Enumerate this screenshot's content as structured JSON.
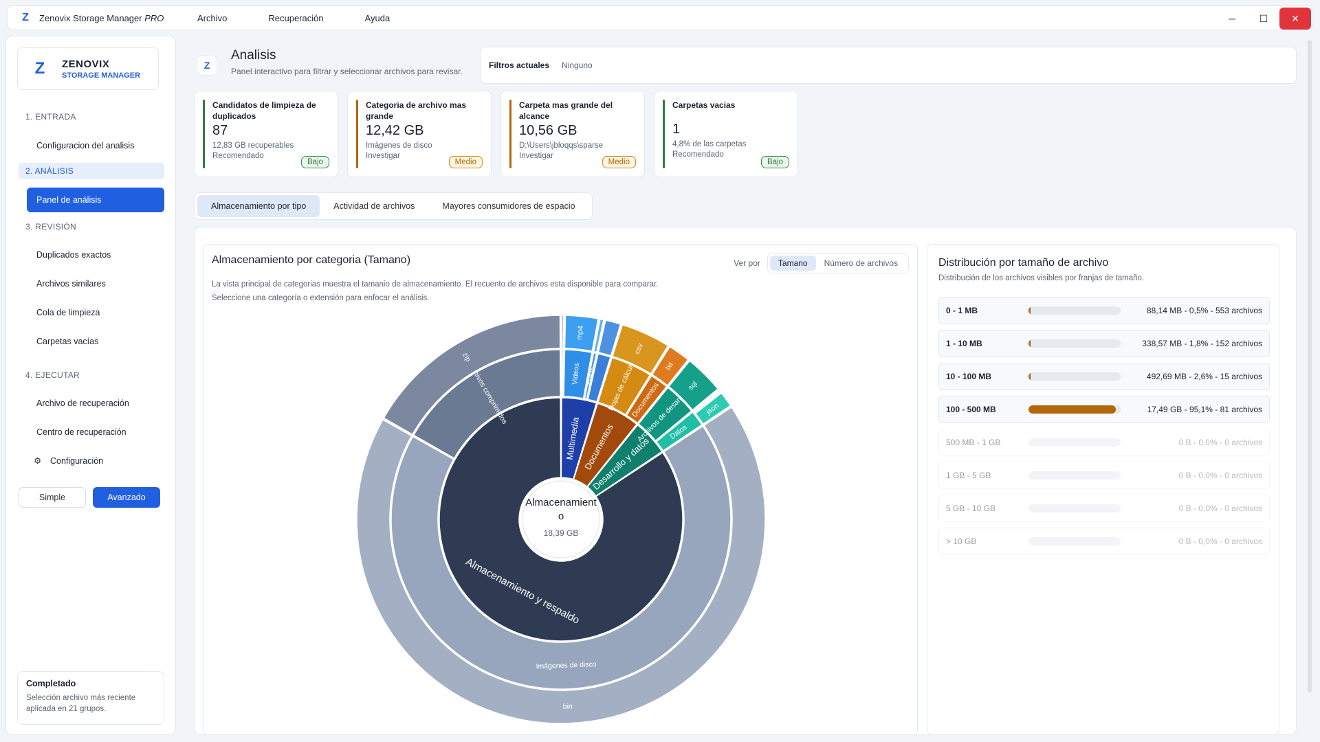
{
  "titlebar": {
    "app_name": "Zenovix Storage Manager",
    "edition": "PRO",
    "menus": [
      "Archivo",
      "Recuperación",
      "Ayuda"
    ],
    "minimize": "─",
    "maximize": "☐",
    "close": "✕"
  },
  "brand": {
    "line1": "ZENOVIX",
    "line2": "STORAGE MANAGER",
    "logo": "Z"
  },
  "sidebar": {
    "sections": [
      "1. ENTRADA",
      "2. ANÁLISIS",
      "3. REVISIÓN",
      "4. EJECUTAR"
    ],
    "items": {
      "config": "Configuracion del analisis",
      "panel": "Panel de análisis",
      "dup": "Duplicados exactos",
      "similar": "Archivos similares",
      "queue": "Cola de limpieza",
      "empty": "Carpetas vacías",
      "recovery_file": "Archivo de recuperación",
      "recovery_center": "Centro de recuperación",
      "settings": "Configuración"
    },
    "modes": [
      "Simple",
      "Avanzado"
    ],
    "status": {
      "title": "Completado",
      "desc": "Selección archivo más reciente aplicada en 21 grupos."
    }
  },
  "header": {
    "title": "Analisis",
    "subtitle": "Panel interactivo para filtrar y seleccionar archivos para revisar.",
    "filters_label": "Filtros actuales",
    "filters_value": "Ninguno"
  },
  "kpis": [
    {
      "title": "Candidatos de limpieza de duplicados",
      "value": "87",
      "detail": "12,83 GB recuperables",
      "rec": "Recomendado",
      "badge": "Bajo",
      "color": "#2e7b3e"
    },
    {
      "title": "Categoria de archivo mas grande",
      "value": "12,42 GB",
      "detail": "Imágenes de disco",
      "rec": "Investigar",
      "badge": "Medio",
      "color": "#b2670a"
    },
    {
      "title": "Carpeta mas grande del alcance",
      "value": "10,56 GB",
      "detail": "D:\\Users\\jbloqqs\\sparse",
      "rec": "Investigar",
      "badge": "Medio",
      "color": "#b2670a"
    },
    {
      "title": "Carpetas vacias",
      "value": "1",
      "detail": "4,8% de las carpetas",
      "rec": "Recomendado",
      "badge": "Bajo",
      "color": "#2e7b3e"
    }
  ],
  "tabs": [
    "Almacenamiento por tipo",
    "Actividad de archivos",
    "Mayores consumidores de espacio"
  ],
  "chart_panel": {
    "title": "Almacenamiento por categoria (Tamano)",
    "desc1": "La vista principal de categorias muestra el tamanio de almacenamiento. El recuento de archivos esta disponible para comparar.",
    "desc2": "Seleccione una categoría o extensión para enfocar el análisis.",
    "view_by": "Ver por",
    "view_options": [
      "Tamano",
      "Número de archivos"
    ]
  },
  "chart_data": {
    "type": "sunburst",
    "center_label": "Almacenamiento",
    "center_value": "18,39 GB",
    "rings": [
      {
        "level": 1,
        "segments": [
          {
            "label": "Multimedia",
            "value": 0.88,
            "color": "#1e3fa8"
          },
          {
            "label": "Documentos",
            "value": 1.1,
            "color": "#a24a0c"
          },
          {
            "label": "Desarrollo y datos",
            "value": 0.9,
            "color": "#0f7f6e"
          },
          {
            "label": "Almacenamiento y respaldo",
            "value": 15.51,
            "color": "#2e3b52"
          }
        ]
      },
      {
        "level": 2,
        "segments": [
          {
            "label": "",
            "value": 0.05,
            "color": "#7a2fd0"
          },
          {
            "label": "Videos",
            "value": 0.5,
            "color": "#2f8fe8"
          },
          {
            "label": "Fotos",
            "value": 0.08,
            "color": "#4a9ee8"
          },
          {
            "label": "",
            "value": 0.25,
            "color": "#3a7fd8"
          },
          {
            "label": "Hojas de cálculo",
            "value": 0.75,
            "color": "#d58a12"
          },
          {
            "label": "Documentos",
            "value": 0.35,
            "color": "#d06a12"
          },
          {
            "label": "Archivos de desarrollo",
            "value": 0.6,
            "color": "#129580"
          },
          {
            "label": "Datos",
            "value": 0.3,
            "color": "#1fbfa6"
          },
          {
            "label": "Imágenes de disco",
            "value": 12.42,
            "color": "#97a6bd"
          },
          {
            "label": "Archivos comprimidos",
            "value": 3.09,
            "color": "#6b7a93"
          }
        ]
      },
      {
        "level": 3,
        "segments": [
          {
            "label": "",
            "value": 0.05,
            "color": "#8a3fe0"
          },
          {
            "label": "mp4",
            "value": 0.5,
            "color": "#3d9ff0"
          },
          {
            "label": "",
            "value": 0.08,
            "color": "#5fb0f0"
          },
          {
            "label": "",
            "value": 0.25,
            "color": "#4d92e0"
          },
          {
            "label": "csv",
            "value": 0.75,
            "color": "#d8961e"
          },
          {
            "label": "txt",
            "value": 0.35,
            "color": "#e07a1e"
          },
          {
            "label": "sql",
            "value": 0.6,
            "color": "#15a08a"
          },
          {
            "label": "",
            "value": 0.05,
            "color": "#dfe3ea"
          },
          {
            "label": "json",
            "value": 0.25,
            "color": "#2ccbb2"
          },
          {
            "label": "bin",
            "value": 12.42,
            "color": "#a3b0c4"
          },
          {
            "label": "zip",
            "value": 3.09,
            "color": "#7b889f"
          }
        ]
      }
    ]
  },
  "distribution": {
    "title": "Distribución por tamaño de archivo",
    "subtitle": "Distribución de los archivos visibles por franjas de tamaño.",
    "rows": [
      {
        "label": "0 - 1 MB",
        "value": "88,14 MB - 0,5% - 553 archivos",
        "pct": 0.5
      },
      {
        "label": "1 - 10 MB",
        "value": "338,57 MB - 1,8% - 152 archivos",
        "pct": 1.8
      },
      {
        "label": "10 - 100 MB",
        "value": "492,69 MB - 2,6% - 15 archivos",
        "pct": 2.6
      },
      {
        "label": "100 - 500 MB",
        "value": "17,49 GB - 95,1% - 81 archivos",
        "pct": 95.1
      },
      {
        "label": "500 MB - 1 GB",
        "value": "0 B - 0,0% - 0 archivos",
        "pct": 0
      },
      {
        "label": "1 GB - 5 GB",
        "value": "0 B - 0,0% - 0 archivos",
        "pct": 0
      },
      {
        "label": "5 GB - 10 GB",
        "value": "0 B - 0,0% - 0 archivos",
        "pct": 0
      },
      {
        "label": "> 10 GB",
        "value": "0 B - 0,0% - 0 archivos",
        "pct": 0
      }
    ]
  }
}
